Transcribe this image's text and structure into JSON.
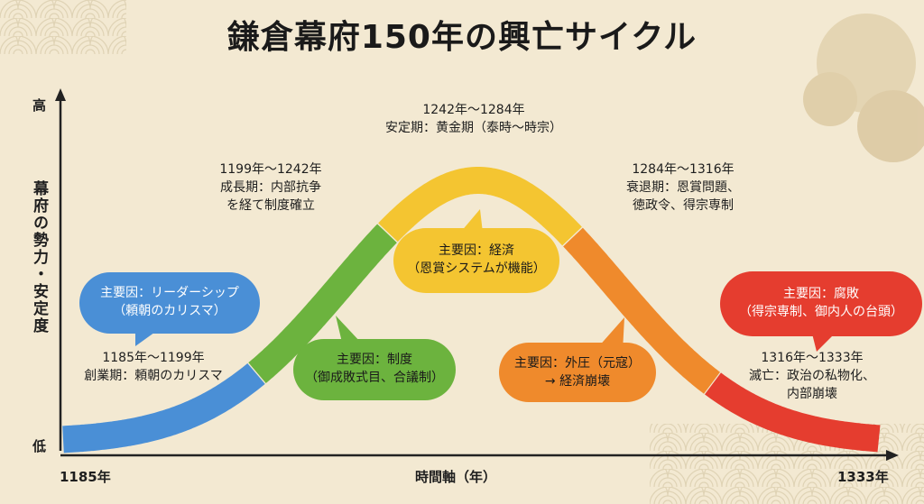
{
  "title": "鎌倉幕府150年の興亡サイクル",
  "y_axis": {
    "name": "幕府の勢力・安定度",
    "high": "高",
    "low": "低"
  },
  "x_axis": {
    "name": "時間軸（年）",
    "start": "1185年",
    "end": "1333年"
  },
  "phases": [
    {
      "period": "1185年〜1199年",
      "line1": "創業期：頼朝のカリスマ",
      "line2": "",
      "color": "#4a8fd6"
    },
    {
      "period": "1199年〜1242年",
      "line1": "成長期：内部抗争",
      "line2": "を経て制度確立",
      "color": "#6cb33e"
    },
    {
      "period": "1242年〜1284年",
      "line1": "安定期：黄金期（泰時〜時宗）",
      "line2": "",
      "color": "#f4c531"
    },
    {
      "period": "1284年〜1316年",
      "line1": "衰退期：恩賞問題、",
      "line2": "徳政令、得宗専制",
      "color": "#ef8a2c"
    },
    {
      "period": "1316年〜1333年",
      "line1": "滅亡：政治の私物化、",
      "line2": "内部崩壊",
      "color": "#e53d2f"
    }
  ],
  "factors": [
    {
      "line1": "主要因：リーダーシップ",
      "line2": "（頼朝のカリスマ）",
      "color": "#4a8fd6"
    },
    {
      "line1": "主要因：制度",
      "line2": "（御成敗式目、合議制）",
      "color": "#6cb33e"
    },
    {
      "line1": "主要因：経済",
      "line2": "（恩賞システムが機能）",
      "color": "#f4c531"
    },
    {
      "line1": "主要因：外圧（元寇）",
      "line2": "→ 経済崩壊",
      "color": "#ef8a2c"
    },
    {
      "line1": "主要因：腐敗",
      "line2": "（得宗専制、御内人の台頭）",
      "color": "#e53d2f"
    }
  ]
}
